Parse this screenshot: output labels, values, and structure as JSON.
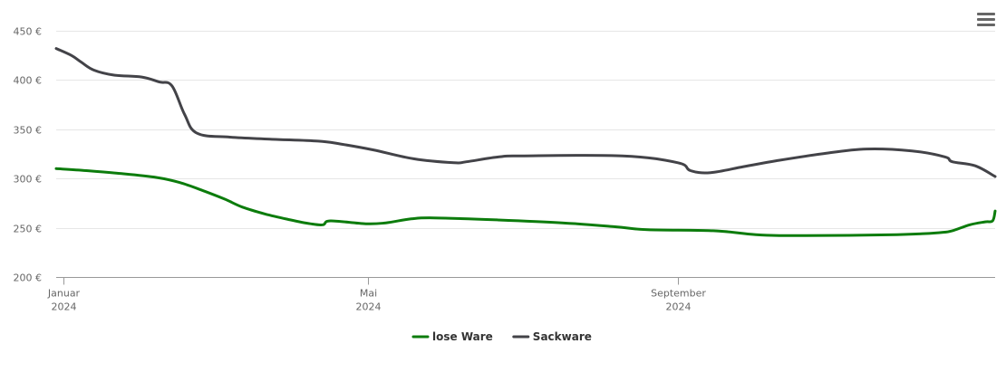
{
  "menu": {
    "icon": "hamburger-menu-icon"
  },
  "chart_data": {
    "type": "line",
    "title": "",
    "xlabel": "",
    "ylabel": "",
    "y_unit": "€",
    "ylim": [
      200,
      450
    ],
    "yticks": [
      {
        "value": 200,
        "label": "200 €"
      },
      {
        "value": 250,
        "label": "250 €"
      },
      {
        "value": 300,
        "label": "300 €"
      },
      {
        "value": 350,
        "label": "350 €"
      },
      {
        "value": 400,
        "label": "400 €"
      },
      {
        "value": 450,
        "label": "450 €"
      }
    ],
    "xlim": [
      "2023-12-29",
      "2025-01-05"
    ],
    "xticks": [
      {
        "date": "2024-01-01",
        "label": "Januar",
        "sublabel": "2024"
      },
      {
        "date": "2024-05-01",
        "label": "Mai",
        "sublabel": "2024"
      },
      {
        "date": "2024-09-01",
        "label": "September",
        "sublabel": "2024"
      }
    ],
    "grid": true,
    "legend_position": "bottom-center",
    "series": [
      {
        "name": "lose Ware",
        "color": "#0c7c0c",
        "points": [
          [
            "2023-12-29",
            310
          ],
          [
            "2024-01-10",
            308
          ],
          [
            "2024-01-24",
            305
          ],
          [
            "2024-02-07",
            301
          ],
          [
            "2024-02-16",
            296
          ],
          [
            "2024-02-26",
            287
          ],
          [
            "2024-03-05",
            279
          ],
          [
            "2024-03-12",
            271
          ],
          [
            "2024-03-21",
            264
          ],
          [
            "2024-03-31",
            258
          ],
          [
            "2024-04-08",
            254
          ],
          [
            "2024-04-13",
            253
          ],
          [
            "2024-04-16",
            257
          ],
          [
            "2024-04-30",
            254
          ],
          [
            "2024-05-08",
            255
          ],
          [
            "2024-05-18",
            259
          ],
          [
            "2024-05-27",
            260
          ],
          [
            "2024-06-21",
            258
          ],
          [
            "2024-07-17",
            255
          ],
          [
            "2024-08-07",
            251
          ],
          [
            "2024-08-20",
            248
          ],
          [
            "2024-09-15",
            247
          ],
          [
            "2024-10-02",
            243
          ],
          [
            "2024-10-20",
            242
          ],
          [
            "2024-11-27",
            243
          ],
          [
            "2024-12-14",
            245
          ],
          [
            "2024-12-19",
            247
          ],
          [
            "2024-12-26",
            253
          ],
          [
            "2025-01-01",
            256
          ],
          [
            "2025-01-04",
            257
          ],
          [
            "2025-01-05",
            267
          ]
        ]
      },
      {
        "name": "Sackware",
        "color": "#434348",
        "points": [
          [
            "2023-12-29",
            432
          ],
          [
            "2024-01-04",
            425
          ],
          [
            "2024-01-08",
            418
          ],
          [
            "2024-01-13",
            410
          ],
          [
            "2024-01-21",
            405
          ],
          [
            "2024-02-01",
            403
          ],
          [
            "2024-02-08",
            398
          ],
          [
            "2024-02-13",
            394
          ],
          [
            "2024-02-18",
            365
          ],
          [
            "2024-02-23",
            346
          ],
          [
            "2024-03-07",
            342
          ],
          [
            "2024-03-23",
            340
          ],
          [
            "2024-04-11",
            338
          ],
          [
            "2024-04-20",
            335
          ],
          [
            "2024-05-03",
            329
          ],
          [
            "2024-05-19",
            320
          ],
          [
            "2024-06-04",
            316
          ],
          [
            "2024-06-09",
            317
          ],
          [
            "2024-06-22",
            322
          ],
          [
            "2024-07-01",
            323
          ],
          [
            "2024-08-10",
            323
          ],
          [
            "2024-09-01",
            316
          ],
          [
            "2024-09-06",
            308
          ],
          [
            "2024-09-14",
            306
          ],
          [
            "2024-09-27",
            312
          ],
          [
            "2024-10-10",
            318
          ],
          [
            "2024-10-28",
            325
          ],
          [
            "2024-11-15",
            330
          ],
          [
            "2024-12-03",
            328
          ],
          [
            "2024-12-16",
            322
          ],
          [
            "2024-12-19",
            317
          ],
          [
            "2024-12-28",
            313
          ],
          [
            "2025-01-05",
            302
          ]
        ]
      }
    ]
  }
}
